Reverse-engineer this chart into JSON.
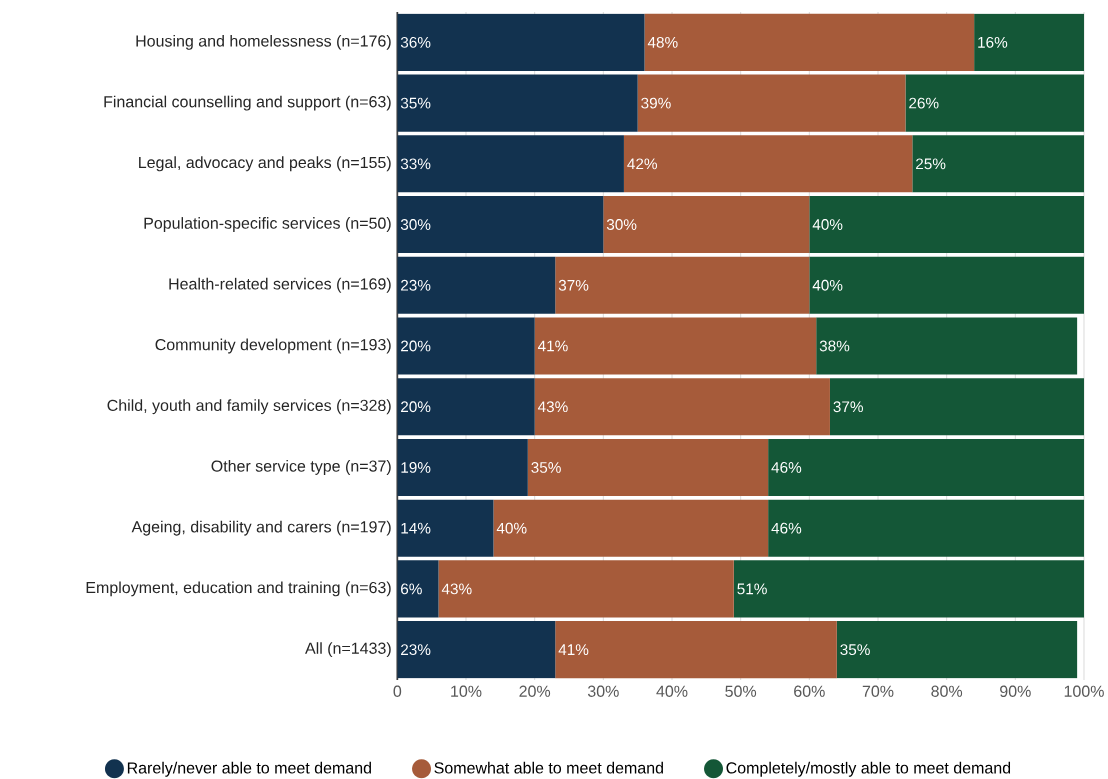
{
  "chart_data": {
    "type": "bar",
    "orientation": "horizontal",
    "stacked": true,
    "categories": [
      "Housing and homelessness (n=176)",
      "Financial counselling and support (n=63)",
      "Legal, advocacy and peaks (n=155)",
      "Population-specific services (n=50)",
      "Health-related services (n=169)",
      "Community development (n=193)",
      "Child, youth and family services (n=328)",
      "Other service type (n=37)",
      "Ageing, disability and carers (n=197)",
      "Employment, education and training (n=63)",
      "All (n=1433)"
    ],
    "series": [
      {
        "name": "Rarely/never able to meet demand",
        "color": "#12324f",
        "values": [
          36,
          35,
          33,
          30,
          23,
          20,
          20,
          19,
          14,
          6,
          23
        ],
        "value_labels": [
          "36%",
          "35%",
          "33%",
          "30%",
          "23%",
          "20%",
          "20%",
          "19%",
          "14%",
          "6%",
          "23%"
        ]
      },
      {
        "name": "Somewhat able to meet demand",
        "color": "#a65b3a",
        "values": [
          48,
          39,
          42,
          30,
          37,
          41,
          43,
          35,
          40,
          43,
          41
        ],
        "value_labels": [
          "48%",
          "39%",
          "42%",
          "30%",
          "37%",
          "41%",
          "43%",
          "35%",
          "40%",
          "43%",
          "41%"
        ]
      },
      {
        "name": "Completely/mostly able to meet demand",
        "color": "#145737",
        "values": [
          16,
          26,
          25,
          40,
          40,
          38,
          37,
          46,
          46,
          51,
          35
        ],
        "value_labels": [
          "16%",
          "26%",
          "25%",
          "40%",
          "40%",
          "38%",
          "37%",
          "46%",
          "46%",
          "51%",
          "35%"
        ]
      }
    ],
    "xlim": [
      0,
      100
    ],
    "xticks": [
      0,
      {
        "value": 10,
        "label": "10%"
      },
      {
        "value": 20,
        "label": "20%"
      },
      {
        "value": 30,
        "label": "30%"
      },
      {
        "value": 40,
        "label": "40%"
      },
      {
        "value": 50,
        "label": "50%"
      },
      {
        "value": 60,
        "label": "60%"
      },
      {
        "value": 70,
        "label": "70%"
      },
      {
        "value": 80,
        "label": "80%"
      },
      {
        "value": 90,
        "label": "90%"
      },
      {
        "value": 100,
        "label": "100%"
      }
    ],
    "grid": "x",
    "legend": "bottom"
  }
}
